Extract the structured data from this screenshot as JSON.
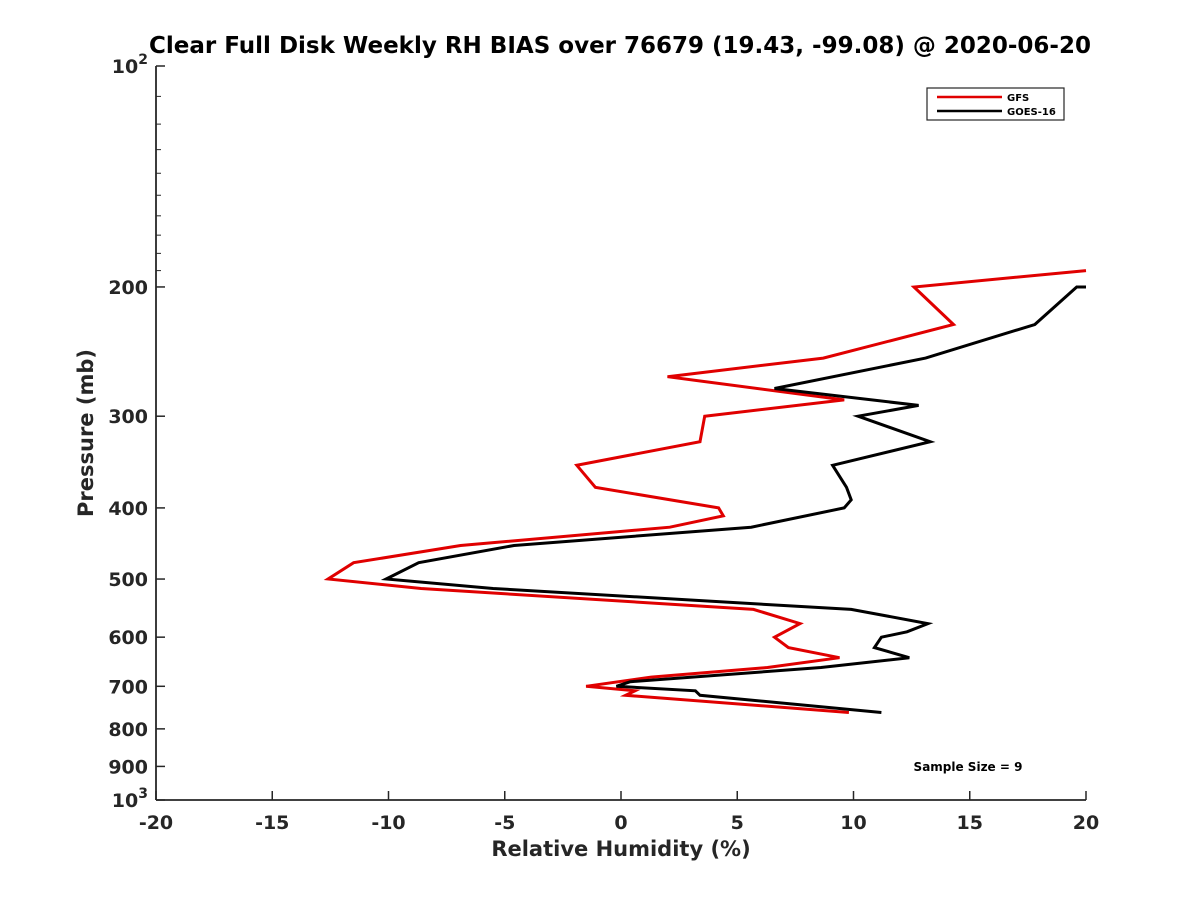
{
  "chart_data": {
    "type": "line",
    "title": "Clear Full Disk Weekly RH BIAS over 76679 (19.43, -99.08) @ 2020-06-20",
    "xlabel": "Relative Humidity (%)",
    "ylabel": "Pressure (mb)",
    "xlim": [
      -20,
      20
    ],
    "ylim": [
      100,
      1000
    ],
    "yscale": "log",
    "y_reversed": true,
    "grid": false,
    "legend_position": "top-right",
    "x_ticks": [
      "-20",
      "-15",
      "-10",
      "-5",
      "0",
      "5",
      "10",
      "15",
      "20"
    ],
    "y_ticks": [
      {
        "value": 100,
        "base": "10",
        "exp": "2"
      },
      {
        "value": 200,
        "label": "200"
      },
      {
        "value": 300,
        "label": "300"
      },
      {
        "value": 400,
        "label": "400"
      },
      {
        "value": 500,
        "label": "500"
      },
      {
        "value": 600,
        "label": "600"
      },
      {
        "value": 700,
        "label": "700"
      },
      {
        "value": 800,
        "label": "800"
      },
      {
        "value": 900,
        "label": "900"
      },
      {
        "value": 1000,
        "base": "10",
        "exp": "3"
      }
    ],
    "series": [
      {
        "name": "GFS",
        "color": "#e00000",
        "points": [
          [
            20.0,
            190
          ],
          [
            12.6,
            200
          ],
          [
            14.3,
            225
          ],
          [
            8.7,
            250
          ],
          [
            2.0,
            265
          ],
          [
            9.6,
            285
          ],
          [
            3.6,
            300
          ],
          [
            3.4,
            325
          ],
          [
            -1.9,
            350
          ],
          [
            -1.1,
            375
          ],
          [
            4.2,
            400
          ],
          [
            4.4,
            410
          ],
          [
            2.1,
            425
          ],
          [
            -6.9,
            450
          ],
          [
            -11.5,
            475
          ],
          [
            -12.6,
            500
          ],
          [
            -8.6,
            515
          ],
          [
            5.7,
            550
          ],
          [
            7.7,
            575
          ],
          [
            6.6,
            600
          ],
          [
            7.2,
            620
          ],
          [
            9.4,
            640
          ],
          [
            6.3,
            660
          ],
          [
            1.3,
            680
          ],
          [
            -1.5,
            700
          ],
          [
            0.6,
            710
          ],
          [
            0.2,
            720
          ],
          [
            9.8,
            760
          ]
        ]
      },
      {
        "name": "GOES-16",
        "color": "#000000",
        "points": [
          [
            20.0,
            200
          ],
          [
            19.6,
            200
          ],
          [
            17.8,
            225
          ],
          [
            13.1,
            250
          ],
          [
            6.6,
            275
          ],
          [
            12.8,
            290
          ],
          [
            10.2,
            300
          ],
          [
            13.3,
            325
          ],
          [
            9.1,
            350
          ],
          [
            9.7,
            375
          ],
          [
            9.9,
            390
          ],
          [
            9.6,
            400
          ],
          [
            5.6,
            425
          ],
          [
            -4.6,
            450
          ],
          [
            -8.7,
            475
          ],
          [
            -10.1,
            500
          ],
          [
            -5.5,
            515
          ],
          [
            9.9,
            550
          ],
          [
            13.2,
            575
          ],
          [
            12.3,
            590
          ],
          [
            11.2,
            600
          ],
          [
            10.9,
            620
          ],
          [
            12.4,
            640
          ],
          [
            8.6,
            660
          ],
          [
            0.4,
            690
          ],
          [
            -0.2,
            700
          ],
          [
            3.2,
            710
          ],
          [
            3.4,
            720
          ],
          [
            11.2,
            760
          ]
        ]
      }
    ],
    "annotation": "Sample Size = 9"
  }
}
